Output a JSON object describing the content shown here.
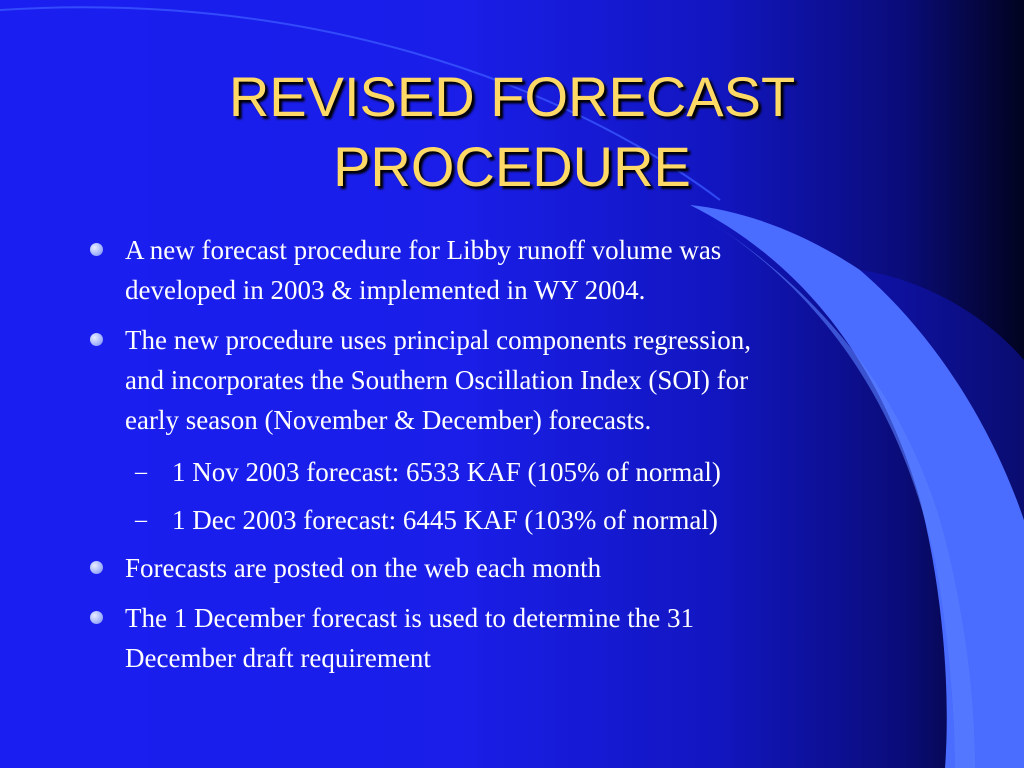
{
  "slide": {
    "title_lines": [
      "REVISED FORECAST",
      "PROCEDURE"
    ],
    "bullets": [
      {
        "lines": [
          "A new forecast procedure for Libby runoff volume was",
          "developed in 2003 & implemented in WY 2004."
        ]
      },
      {
        "lines": [
          "The new procedure uses principal components regression,",
          "and incorporates the Southern Oscillation Index (SOI) for",
          "early season (November & December) forecasts."
        ],
        "subbullets": [
          {
            "marker": "–",
            "text": "1 Nov 2003 forecast:  6533 KAF (105% of normal)"
          },
          {
            "marker": "–",
            "text": "1 Dec 2003 forecast:  6445 KAF (103% of normal)"
          }
        ]
      },
      {
        "lines": [
          "Forecasts are posted on the web each month"
        ]
      },
      {
        "lines": [
          "The 1 December forecast is used to determine the 31",
          "December draft requirement"
        ]
      }
    ],
    "colors": {
      "background": "#1a1ef0",
      "title": "#ffd966",
      "text": "#ffffff",
      "swoosh": "#4a6cff"
    }
  }
}
